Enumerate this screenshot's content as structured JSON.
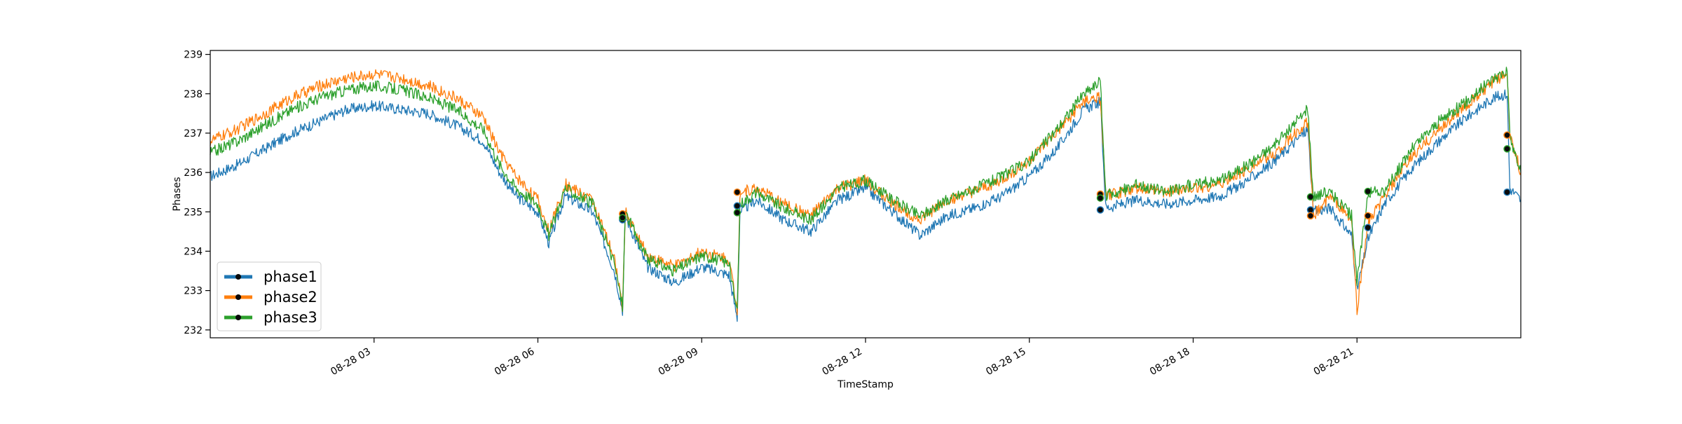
{
  "chart_data": {
    "type": "line",
    "title": "",
    "xlabel": "TimeStamp",
    "ylabel": "Phases",
    "ylim": [
      231.8,
      239.1
    ],
    "xlim_hours": [
      0,
      24
    ],
    "x_tick_labels": [
      "08-28 03",
      "08-28 06",
      "08-28 09",
      "08-28 12",
      "08-28 15",
      "08-28 18",
      "08-28 21"
    ],
    "x_tick_hours": [
      3,
      6,
      9,
      12,
      15,
      18,
      21
    ],
    "y_tick_labels": [
      "232",
      "233",
      "234",
      "235",
      "236",
      "237",
      "238",
      "239"
    ],
    "y_ticks": [
      232,
      233,
      234,
      235,
      236,
      237,
      238,
      239
    ],
    "grid": false,
    "legend_position": "lower-left",
    "x_hours": [
      0,
      0.5,
      1,
      1.5,
      2,
      2.5,
      3,
      3.5,
      4,
      4.5,
      5,
      5.3,
      5.6,
      6,
      6.2,
      6.5,
      7,
      7.4,
      7.55,
      7.6,
      8,
      8.5,
      9,
      9.5,
      9.65,
      9.7,
      10,
      10.5,
      11,
      11.5,
      12,
      12.5,
      13,
      13.5,
      14,
      14.5,
      15,
      15.5,
      16,
      16.3,
      16.4,
      17,
      17.5,
      18,
      18.5,
      19,
      19.5,
      20.1,
      20.2,
      20.5,
      20.9,
      21,
      21.2,
      21.5,
      22,
      22.5,
      23,
      23.5,
      23.75,
      23.8,
      24
    ],
    "series": [
      {
        "name": "phase1",
        "color": "#1f77b4",
        "values": [
          235.9,
          236.2,
          236.6,
          237.0,
          237.3,
          237.6,
          237.7,
          237.6,
          237.5,
          237.2,
          236.8,
          236.0,
          235.4,
          235.0,
          234.2,
          235.4,
          235.0,
          233.5,
          232.5,
          234.9,
          233.6,
          233.2,
          233.6,
          233.4,
          232.3,
          235.0,
          235.3,
          234.8,
          234.5,
          235.3,
          235.6,
          235.0,
          234.4,
          234.9,
          235.1,
          235.4,
          235.9,
          236.6,
          237.6,
          237.8,
          235.1,
          235.3,
          235.2,
          235.3,
          235.4,
          235.8,
          236.3,
          237.1,
          235.0,
          235.1,
          234.4,
          233.0,
          234.3,
          235.2,
          236.1,
          236.8,
          237.4,
          237.9,
          238.0,
          235.6,
          235.3
        ]
      },
      {
        "name": "phase2",
        "color": "#ff7f0e",
        "values": [
          236.8,
          237.1,
          237.5,
          237.9,
          238.2,
          238.4,
          238.5,
          238.4,
          238.2,
          237.9,
          237.4,
          236.5,
          235.9,
          235.3,
          234.5,
          235.7,
          235.3,
          233.8,
          232.6,
          235.0,
          233.9,
          233.6,
          234.0,
          233.8,
          232.5,
          235.5,
          235.6,
          235.2,
          234.9,
          235.6,
          235.8,
          235.2,
          234.8,
          235.3,
          235.5,
          235.8,
          236.3,
          237.0,
          237.8,
          237.9,
          235.4,
          235.6,
          235.5,
          235.6,
          235.7,
          236.1,
          236.5,
          237.3,
          234.9,
          235.4,
          234.8,
          232.5,
          234.7,
          235.4,
          236.4,
          237.1,
          237.7,
          238.3,
          238.5,
          237.0,
          236.0
        ]
      },
      {
        "name": "phase3",
        "color": "#2ca02c",
        "values": [
          236.5,
          236.8,
          237.2,
          237.6,
          237.9,
          238.1,
          238.2,
          238.1,
          237.9,
          237.6,
          237.1,
          236.2,
          235.6,
          235.2,
          234.4,
          235.6,
          235.2,
          233.7,
          232.6,
          235.0,
          233.8,
          233.5,
          233.9,
          233.7,
          232.4,
          235.2,
          235.5,
          235.1,
          234.8,
          235.6,
          235.8,
          235.3,
          234.9,
          235.3,
          235.6,
          235.9,
          236.3,
          237.1,
          238.0,
          238.3,
          235.4,
          235.7,
          235.5,
          235.7,
          235.8,
          236.2,
          236.7,
          237.6,
          235.4,
          235.5,
          234.9,
          233.2,
          235.5,
          235.5,
          236.6,
          237.3,
          237.8,
          238.4,
          238.6,
          236.9,
          236.0
        ]
      }
    ],
    "markers": [
      {
        "hour": 7.55,
        "values": [
          234.8,
          234.95,
          234.85
        ]
      },
      {
        "hour": 9.65,
        "values": [
          235.15,
          235.5,
          234.98
        ]
      },
      {
        "hour": 16.3,
        "values": [
          235.05,
          235.45,
          235.35
        ]
      },
      {
        "hour": 20.15,
        "values": [
          235.05,
          234.9,
          235.38
        ]
      },
      {
        "hour": 21.2,
        "values": [
          234.6,
          234.9,
          235.52
        ]
      },
      {
        "hour": 23.75,
        "values": [
          235.5,
          236.95,
          236.6
        ]
      }
    ]
  }
}
